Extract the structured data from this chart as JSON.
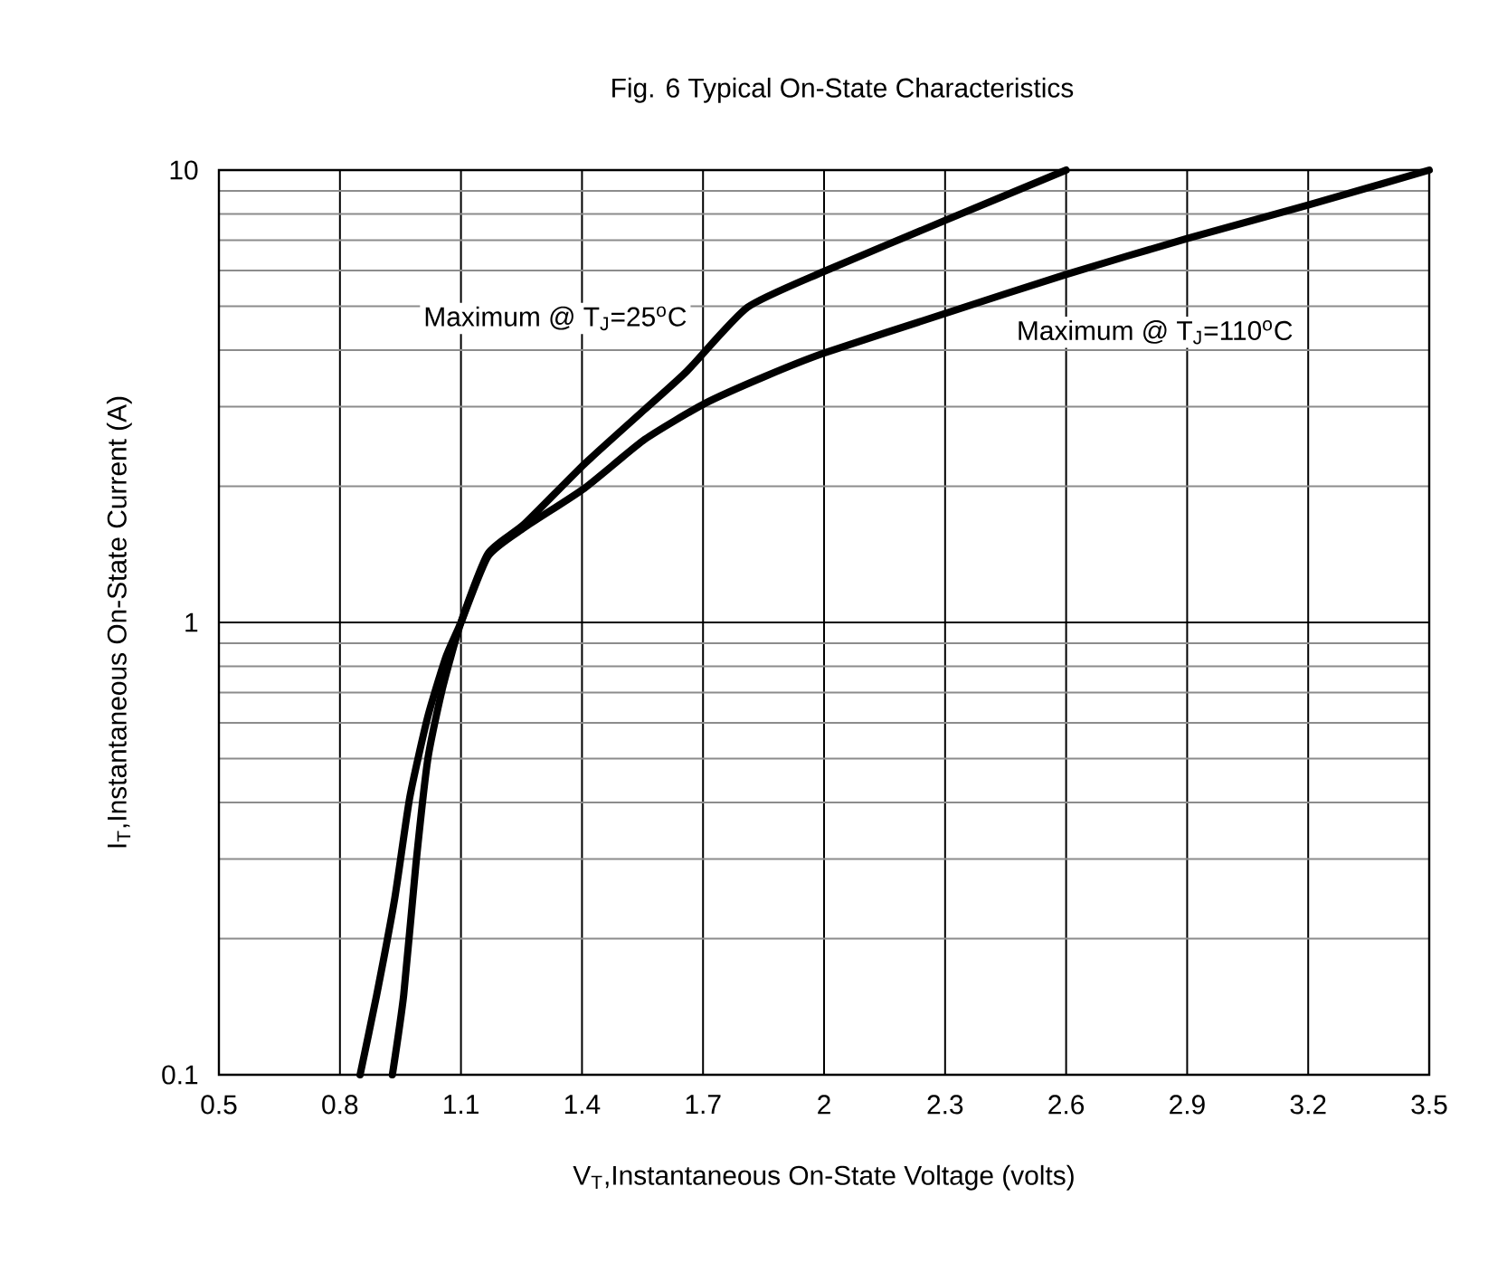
{
  "chart_data": {
    "type": "line",
    "title": "Fig. 6 Typical On-State Characteristics",
    "xlabel": "V$_{T}$,Instantaneous On-State Voltage (volts)",
    "ylabel": "I$_{T}$,Instantaneous On-State Current (A)",
    "log": "y",
    "grid": true,
    "xlim": [
      0.5,
      3.5
    ],
    "xticks": [
      0.5,
      0.8,
      1.1,
      1.4,
      1.7,
      2,
      2.3,
      2.6,
      2.9,
      3.2,
      3.5
    ],
    "ylim": [
      0.1,
      10
    ],
    "yticks": [
      0.1,
      1,
      10
    ],
    "series": [
      {
        "name": "Maximum @  T$_{J}$=25$^{o}$C",
        "color": "#000000",
        "x": [
          0.93,
          0.958,
          0.988,
          1.018,
          1.055,
          1.1,
          1.167,
          1.257,
          1.406,
          1.556,
          1.661,
          1.81,
          2.0,
          2.3,
          2.6
        ],
        "values": [
          0.1,
          0.15,
          0.29,
          0.5,
          0.72,
          1,
          1.42,
          1.65,
          2.24,
          2.96,
          3.6,
          4.97,
          5.97,
          7.74,
          10
        ]
      },
      {
        "name": "Maximum @ T$_{J}$=110$^{o}$C",
        "color": "#000000",
        "x": [
          0.85,
          0.891,
          0.936,
          0.973,
          1.018,
          1.063,
          1.1,
          1.167,
          1.257,
          1.406,
          1.556,
          1.705,
          1.854,
          2.0,
          2.3,
          2.6,
          2.9,
          3.2,
          3.5
        ],
        "values": [
          0.1,
          0.15,
          0.246,
          0.41,
          0.62,
          0.84,
          1,
          1.4,
          1.62,
          1.98,
          2.54,
          3.05,
          3.5,
          3.94,
          4.82,
          5.88,
          7.06,
          8.37,
          10
        ]
      }
    ]
  }
}
